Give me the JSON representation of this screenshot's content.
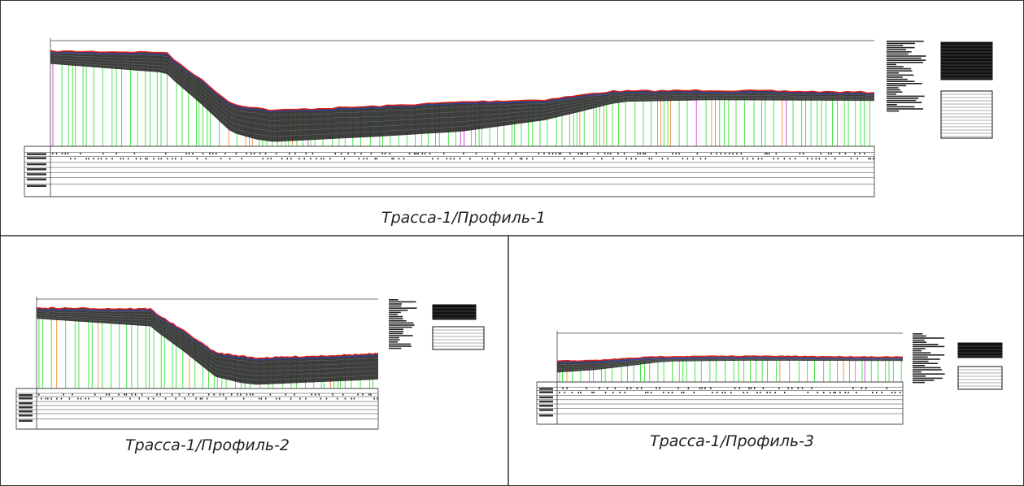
{
  "panels": [
    {
      "caption": "Трасса-1/Профиль-1"
    },
    {
      "caption": "Трасса-1/Профиль-2"
    },
    {
      "caption": "Трасса-1/Профиль-3"
    }
  ]
}
